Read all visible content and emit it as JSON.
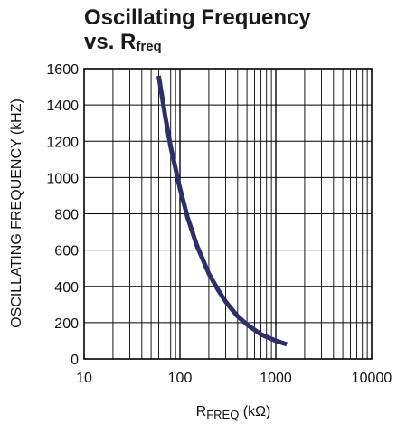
{
  "chart_data": {
    "type": "line",
    "title_line1": "Oscillating Frequency",
    "title_line2_main": "vs. R",
    "title_line2_sub": "freq",
    "xlabel_main": "R",
    "xlabel_sub": "FREQ",
    "xlabel_unit": " (kΩ)",
    "ylabel": "OSCILLATING FREQUENCY (kHZ)",
    "xscale": "log",
    "xlim": [
      10,
      10000
    ],
    "ylim": [
      0,
      1600
    ],
    "x_ticks": [
      10,
      100,
      1000,
      10000
    ],
    "x_tick_labels": [
      "10",
      "100",
      "1000",
      "10000"
    ],
    "y_ticks": [
      0,
      200,
      400,
      600,
      800,
      1000,
      1200,
      1400,
      1600
    ],
    "y_tick_labels": [
      "0",
      "200",
      "400",
      "600",
      "800",
      "1000",
      "1200",
      "1400",
      "1600"
    ],
    "grid": true,
    "series": [
      {
        "color": "#2e2e6b",
        "x": [
          60,
          70,
          80,
          100,
          120,
          150,
          200,
          250,
          300,
          400,
          500,
          700,
          1000,
          1300
        ],
        "y": [
          1560,
          1340,
          1170,
          940,
          780,
          625,
          470,
          380,
          315,
          235,
          190,
          135,
          100,
          80
        ]
      }
    ]
  }
}
